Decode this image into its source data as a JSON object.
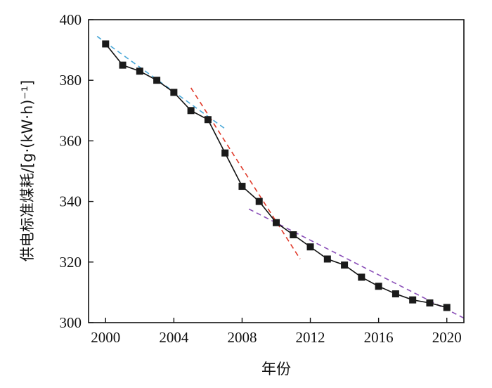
{
  "chart_data": {
    "type": "line",
    "title": "",
    "xlabel": "年份",
    "ylabel": "供电标准煤耗/[g·(kW·h)⁻¹]",
    "xlim": [
      1999,
      2021
    ],
    "ylim": [
      300,
      400
    ],
    "xticks": [
      2000,
      2004,
      2008,
      2012,
      2016,
      2020
    ],
    "yticks": [
      300,
      320,
      340,
      360,
      380,
      400
    ],
    "grid": false,
    "legend": "none",
    "series": [
      {
        "x": [
          2000,
          2001,
          2002,
          2003,
          2004,
          2005,
          2006,
          2007,
          2008,
          2009,
          2010,
          2011,
          2012,
          2013,
          2014,
          2015,
          2016,
          2017,
          2018,
          2019,
          2020
        ],
        "y": [
          392,
          385,
          383,
          380,
          376,
          370,
          367,
          356,
          345,
          340,
          333,
          329,
          325,
          321,
          319,
          315,
          312,
          309.5,
          307.5,
          306.5,
          305
        ],
        "color": "#1a1a1a",
        "marker": "square"
      }
    ],
    "trendlines": [
      {
        "x": [
          1999.5,
          2007
        ],
        "y": [
          394.5,
          364
        ],
        "color": "#4aa8d8"
      },
      {
        "x": [
          2005,
          2011.4
        ],
        "y": [
          377.5,
          321
        ],
        "color": "#e03a2a"
      },
      {
        "x": [
          2008.4,
          2021
        ],
        "y": [
          337.5,
          301.5
        ],
        "color": "#8a4fb8"
      }
    ]
  }
}
